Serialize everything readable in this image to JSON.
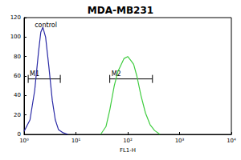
{
  "chart_data": {
    "type": "line",
    "title": "MDA-MB231",
    "x_label": "FL1-H",
    "log": "x",
    "xlim": [
      1,
      10000
    ],
    "xticks": [
      {
        "value": 1,
        "label": "10⁰"
      },
      {
        "value": 10,
        "label": "10¹"
      },
      {
        "value": 100,
        "label": "10²"
      },
      {
        "value": 1000,
        "label": "10³"
      },
      {
        "value": 10000,
        "label": "10⁴"
      }
    ],
    "ylim": [
      0,
      120
    ],
    "yticks": [
      0,
      20,
      40,
      60,
      80,
      100,
      120
    ],
    "grid": false,
    "series": [
      {
        "color": "#2a2aa6",
        "x": [
          1,
          1.3,
          1.6,
          1.9,
          2.1,
          2.3,
          2.6,
          3,
          3.5,
          4,
          4.6,
          5.5,
          7
        ],
        "values": [
          3,
          15,
          45,
          85,
          105,
          110,
          100,
          70,
          35,
          15,
          5,
          2,
          0
        ]
      },
      {
        "color": "#3fcc3f",
        "x": [
          30,
          38,
          45,
          55,
          65,
          75,
          85,
          100,
          115,
          130,
          150,
          180,
          220,
          270,
          330,
          420
        ],
        "values": [
          0,
          8,
          25,
          50,
          65,
          72,
          78,
          80,
          76,
          72,
          60,
          40,
          22,
          10,
          4,
          0
        ]
      }
    ],
    "gates": [
      {
        "label": "M1",
        "range": [
          1.2,
          5
        ],
        "y": 57
      },
      {
        "label": "M2",
        "range": [
          45,
          300
        ],
        "y": 57
      }
    ],
    "annotations": [
      {
        "text": "control",
        "x": 1.6,
        "y": 112
      }
    ]
  }
}
